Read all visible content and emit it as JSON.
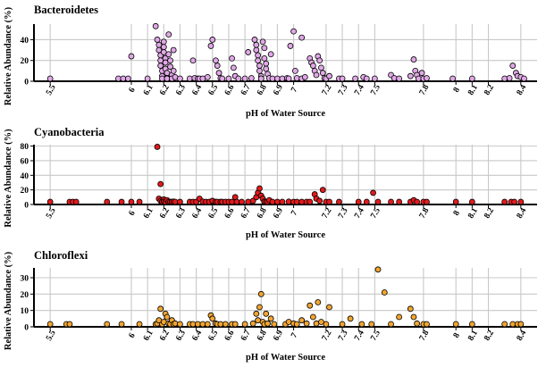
{
  "chart_data": [
    {
      "type": "scatter",
      "title": "Bacteroidetes",
      "xlabel": "pH of Water Source",
      "ylabel": "Relative Abundance (%)",
      "x_ticks": [
        "5.5",
        "6",
        "6.1",
        "6.2",
        "6.3",
        "6.4",
        "6.5",
        "6.6",
        "6.7",
        "6.8",
        "6.9",
        "7",
        "7.2",
        "7.3",
        "7.4",
        "7.5",
        "7.8",
        "8",
        "8.1",
        "8.2",
        "8.4"
      ],
      "x_tick_values": [
        5.5,
        6.0,
        6.1,
        6.2,
        6.3,
        6.4,
        6.5,
        6.6,
        6.7,
        6.8,
        6.9,
        7.0,
        7.2,
        7.3,
        7.4,
        7.5,
        7.8,
        8.0,
        8.1,
        8.2,
        8.4
      ],
      "y_ticks": [
        0,
        20,
        40
      ],
      "ylim": [
        0,
        55
      ],
      "xlim": [
        5.4,
        8.5
      ],
      "grid": true,
      "color": "#e0a8e6",
      "points": [
        [
          5.5,
          0.5
        ],
        [
          5.92,
          1
        ],
        [
          5.95,
          1
        ],
        [
          5.98,
          1.5
        ],
        [
          6.0,
          24
        ],
        [
          6.1,
          1
        ],
        [
          6.15,
          53
        ],
        [
          6.16,
          40
        ],
        [
          6.17,
          35
        ],
        [
          6.17,
          30
        ],
        [
          6.18,
          25
        ],
        [
          6.18,
          20
        ],
        [
          6.18,
          15
        ],
        [
          6.19,
          10
        ],
        [
          6.19,
          5
        ],
        [
          6.19,
          1
        ],
        [
          6.2,
          38
        ],
        [
          6.2,
          33
        ],
        [
          6.2,
          28
        ],
        [
          6.21,
          22
        ],
        [
          6.21,
          18
        ],
        [
          6.21,
          12
        ],
        [
          6.22,
          8
        ],
        [
          6.22,
          3
        ],
        [
          6.22,
          1
        ],
        [
          6.23,
          45
        ],
        [
          6.23,
          26
        ],
        [
          6.24,
          20
        ],
        [
          6.24,
          14
        ],
        [
          6.25,
          6
        ],
        [
          6.25,
          2
        ],
        [
          6.26,
          30
        ],
        [
          6.26,
          10
        ],
        [
          6.27,
          4
        ],
        [
          6.3,
          1
        ],
        [
          6.36,
          1
        ],
        [
          6.38,
          20
        ],
        [
          6.39,
          3
        ],
        [
          6.41,
          1
        ],
        [
          6.42,
          2
        ],
        [
          6.44,
          1
        ],
        [
          6.47,
          4
        ],
        [
          6.49,
          34
        ],
        [
          6.5,
          40
        ],
        [
          6.52,
          20
        ],
        [
          6.53,
          15
        ],
        [
          6.54,
          8
        ],
        [
          6.55,
          3
        ],
        [
          6.56,
          1
        ],
        [
          6.6,
          2
        ],
        [
          6.62,
          22
        ],
        [
          6.63,
          13
        ],
        [
          6.64,
          5
        ],
        [
          6.66,
          1
        ],
        [
          6.7,
          2
        ],
        [
          6.72,
          28
        ],
        [
          6.74,
          3
        ],
        [
          6.76,
          40
        ],
        [
          6.77,
          35
        ],
        [
          6.77,
          30
        ],
        [
          6.78,
          25
        ],
        [
          6.78,
          20
        ],
        [
          6.79,
          15
        ],
        [
          6.79,
          10
        ],
        [
          6.8,
          5
        ],
        [
          6.8,
          2
        ],
        [
          6.8,
          1
        ],
        [
          6.81,
          38
        ],
        [
          6.82,
          32
        ],
        [
          6.82,
          22
        ],
        [
          6.83,
          17
        ],
        [
          6.83,
          12
        ],
        [
          6.84,
          7
        ],
        [
          6.85,
          3
        ],
        [
          6.86,
          26
        ],
        [
          6.87,
          1
        ],
        [
          6.9,
          1
        ],
        [
          6.93,
          1
        ],
        [
          6.96,
          3
        ],
        [
          6.97,
          2
        ],
        [
          6.98,
          34
        ],
        [
          7.0,
          48
        ],
        [
          7.01,
          10
        ],
        [
          7.02,
          3
        ],
        [
          7.05,
          1
        ],
        [
          7.05,
          42
        ],
        [
          7.07,
          4
        ],
        [
          7.1,
          22
        ],
        [
          7.11,
          18
        ],
        [
          7.12,
          15
        ],
        [
          7.13,
          10
        ],
        [
          7.14,
          6
        ],
        [
          7.15,
          24
        ],
        [
          7.16,
          20
        ],
        [
          7.17,
          13
        ],
        [
          7.18,
          8
        ],
        [
          7.19,
          3
        ],
        [
          7.2,
          1
        ],
        [
          7.22,
          5
        ],
        [
          7.28,
          1
        ],
        [
          7.3,
          2
        ],
        [
          7.38,
          1
        ],
        [
          7.43,
          4
        ],
        [
          7.45,
          1
        ],
        [
          7.5,
          2
        ],
        [
          7.6,
          6
        ],
        [
          7.62,
          3
        ],
        [
          7.65,
          1
        ],
        [
          7.72,
          5
        ],
        [
          7.74,
          21
        ],
        [
          7.75,
          10
        ],
        [
          7.76,
          6
        ],
        [
          7.77,
          2
        ],
        [
          7.79,
          8
        ],
        [
          7.8,
          1
        ],
        [
          7.82,
          3
        ],
        [
          7.98,
          1
        ],
        [
          8.1,
          1
        ],
        [
          8.3,
          2
        ],
        [
          8.33,
          3
        ],
        [
          8.35,
          15
        ],
        [
          8.37,
          8
        ],
        [
          8.38,
          5
        ],
        [
          8.4,
          4
        ],
        [
          8.42,
          1
        ]
      ]
    },
    {
      "type": "scatter",
      "title": "Cyanobacteria",
      "xlabel": "pH of Water Source",
      "ylabel": "Relative Abundance (%)",
      "x_ticks": [
        "5.5",
        "6",
        "6.1",
        "6.2",
        "6.3",
        "6.4",
        "6.5",
        "6.6",
        "6.7",
        "6.8",
        "6.9",
        "7",
        "7.2",
        "7.3",
        "7.4",
        "7.5",
        "7.8",
        "8",
        "8.1",
        "8.2",
        "8.4"
      ],
      "x_tick_values": [
        5.5,
        6.0,
        6.1,
        6.2,
        6.3,
        6.4,
        6.5,
        6.6,
        6.7,
        6.8,
        6.9,
        7.0,
        7.2,
        7.3,
        7.4,
        7.5,
        7.8,
        8.0,
        8.1,
        8.2,
        8.4
      ],
      "y_ticks": [
        0,
        20,
        40,
        60,
        80
      ],
      "ylim": [
        0,
        82
      ],
      "xlim": [
        5.4,
        8.5
      ],
      "grid": true,
      "color": "#e31a1c",
      "points": [
        [
          5.5,
          0.5
        ],
        [
          5.62,
          1
        ],
        [
          5.64,
          1
        ],
        [
          5.66,
          0.5
        ],
        [
          5.85,
          0.5
        ],
        [
          5.94,
          0.5
        ],
        [
          6.0,
          0.5
        ],
        [
          6.05,
          0.5
        ],
        [
          6.16,
          79
        ],
        [
          6.18,
          28
        ],
        [
          6.17,
          8
        ],
        [
          6.18,
          5
        ],
        [
          6.19,
          3
        ],
        [
          6.19,
          1
        ],
        [
          6.2,
          7
        ],
        [
          6.2,
          4
        ],
        [
          6.21,
          2
        ],
        [
          6.21,
          1
        ],
        [
          6.22,
          6
        ],
        [
          6.23,
          3
        ],
        [
          6.24,
          1
        ],
        [
          6.25,
          2
        ],
        [
          6.26,
          4
        ],
        [
          6.27,
          1
        ],
        [
          6.3,
          1
        ],
        [
          6.36,
          1
        ],
        [
          6.38,
          2
        ],
        [
          6.4,
          1
        ],
        [
          6.42,
          8
        ],
        [
          6.44,
          4
        ],
        [
          6.46,
          2
        ],
        [
          6.48,
          1
        ],
        [
          6.5,
          5
        ],
        [
          6.52,
          3
        ],
        [
          6.53,
          1
        ],
        [
          6.55,
          2
        ],
        [
          6.56,
          1
        ],
        [
          6.58,
          2
        ],
        [
          6.6,
          1
        ],
        [
          6.62,
          1
        ],
        [
          6.64,
          10
        ],
        [
          6.65,
          2
        ],
        [
          6.68,
          1
        ],
        [
          6.72,
          2
        ],
        [
          6.75,
          5
        ],
        [
          6.77,
          10
        ],
        [
          6.78,
          16
        ],
        [
          6.79,
          22
        ],
        [
          6.8,
          12
        ],
        [
          6.81,
          8
        ],
        [
          6.82,
          4
        ],
        [
          6.83,
          2
        ],
        [
          6.84,
          1
        ],
        [
          6.85,
          6
        ],
        [
          6.87,
          3
        ],
        [
          6.9,
          1
        ],
        [
          6.93,
          1
        ],
        [
          6.97,
          4
        ],
        [
          7.0,
          2
        ],
        [
          7.02,
          1
        ],
        [
          7.05,
          3
        ],
        [
          7.08,
          1
        ],
        [
          7.1,
          2
        ],
        [
          7.13,
          14
        ],
        [
          7.14,
          8
        ],
        [
          7.16,
          5
        ],
        [
          7.18,
          20
        ],
        [
          7.2,
          3
        ],
        [
          7.22,
          1
        ],
        [
          7.28,
          1
        ],
        [
          7.4,
          1
        ],
        [
          7.45,
          1
        ],
        [
          7.49,
          16
        ],
        [
          7.52,
          2
        ],
        [
          7.6,
          1
        ],
        [
          7.65,
          2
        ],
        [
          7.72,
          3
        ],
        [
          7.74,
          6
        ],
        [
          7.76,
          2
        ],
        [
          7.8,
          1
        ],
        [
          7.82,
          1
        ],
        [
          8.0,
          1
        ],
        [
          8.1,
          0.5
        ],
        [
          8.3,
          1
        ],
        [
          8.34,
          2
        ],
        [
          8.36,
          1
        ],
        [
          8.4,
          0.5
        ]
      ]
    },
    {
      "type": "scatter",
      "title": "Chloroflexi",
      "xlabel": "pH of Water Source",
      "ylabel": "Relative Abundance (%)",
      "x_ticks": [
        "5.5",
        "6",
        "6.1",
        "6.2",
        "6.3",
        "6.4",
        "6.5",
        "6.6",
        "6.7",
        "6.8",
        "6.9",
        "7",
        "7.2",
        "7.3",
        "7.4",
        "7.5",
        "7.8",
        "8",
        "8.1",
        "8.2",
        "8.4"
      ],
      "x_tick_values": [
        5.5,
        6.0,
        6.1,
        6.2,
        6.3,
        6.4,
        6.5,
        6.6,
        6.7,
        6.8,
        6.9,
        7.0,
        7.2,
        7.3,
        7.4,
        7.5,
        7.8,
        8.0,
        8.1,
        8.2,
        8.4
      ],
      "y_ticks": [
        0,
        10,
        20,
        30
      ],
      "ylim": [
        0,
        36
      ],
      "xlim": [
        5.4,
        8.5
      ],
      "grid": true,
      "color": "#f2a531",
      "points": [
        [
          5.5,
          0.3
        ],
        [
          5.6,
          0.3
        ],
        [
          5.62,
          0.3
        ],
        [
          5.85,
          0.3
        ],
        [
          5.94,
          0.3
        ],
        [
          6.05,
          0.3
        ],
        [
          6.15,
          1
        ],
        [
          6.16,
          2
        ],
        [
          6.17,
          4
        ],
        [
          6.18,
          11
        ],
        [
          6.19,
          1
        ],
        [
          6.2,
          3
        ],
        [
          6.21,
          8
        ],
        [
          6.22,
          6
        ],
        [
          6.23,
          2
        ],
        [
          6.24,
          1
        ],
        [
          6.25,
          4
        ],
        [
          6.26,
          1
        ],
        [
          6.27,
          2
        ],
        [
          6.3,
          0.5
        ],
        [
          6.36,
          0.5
        ],
        [
          6.38,
          1
        ],
        [
          6.41,
          0.5
        ],
        [
          6.44,
          1
        ],
        [
          6.47,
          0.5
        ],
        [
          6.49,
          7
        ],
        [
          6.5,
          5
        ],
        [
          6.52,
          2
        ],
        [
          6.53,
          1
        ],
        [
          6.55,
          0.5
        ],
        [
          6.58,
          0.5
        ],
        [
          6.62,
          1
        ],
        [
          6.64,
          0.5
        ],
        [
          6.7,
          0.5
        ],
        [
          6.75,
          2
        ],
        [
          6.77,
          8
        ],
        [
          6.78,
          4
        ],
        [
          6.79,
          12
        ],
        [
          6.8,
          20
        ],
        [
          6.81,
          3
        ],
        [
          6.82,
          1
        ],
        [
          6.83,
          8
        ],
        [
          6.84,
          2
        ],
        [
          6.86,
          5
        ],
        [
          6.88,
          1
        ],
        [
          6.95,
          1
        ],
        [
          6.97,
          3
        ],
        [
          7.0,
          2
        ],
        [
          7.02,
          1
        ],
        [
          7.05,
          4
        ],
        [
          7.08,
          2
        ],
        [
          7.1,
          13
        ],
        [
          7.12,
          6
        ],
        [
          7.14,
          2
        ],
        [
          7.15,
          15
        ],
        [
          7.17,
          3
        ],
        [
          7.2,
          1
        ],
        [
          7.22,
          12
        ],
        [
          7.3,
          0.5
        ],
        [
          7.35,
          5
        ],
        [
          7.42,
          0.5
        ],
        [
          7.48,
          1
        ],
        [
          7.52,
          35
        ],
        [
          7.56,
          21
        ],
        [
          7.6,
          1
        ],
        [
          7.65,
          6
        ],
        [
          7.72,
          11
        ],
        [
          7.74,
          6
        ],
        [
          7.76,
          2
        ],
        [
          7.8,
          0.5
        ],
        [
          7.82,
          1
        ],
        [
          8.0,
          0.3
        ],
        [
          8.1,
          0.3
        ],
        [
          8.3,
          0.5
        ],
        [
          8.35,
          1
        ],
        [
          8.38,
          0.5
        ],
        [
          8.4,
          0.3
        ]
      ]
    }
  ]
}
